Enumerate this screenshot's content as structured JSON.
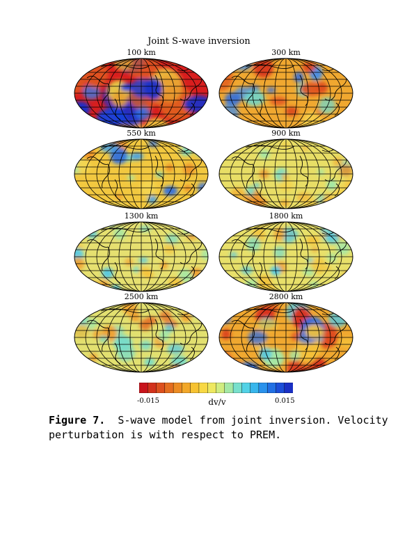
{
  "figure": {
    "title": "Joint S-wave inversion",
    "maps": [
      {
        "label": "100 km"
      },
      {
        "label": "300 km"
      },
      {
        "label": "550 km"
      },
      {
        "label": "900 km"
      },
      {
        "label": "1300 km"
      },
      {
        "label": "1800 km"
      },
      {
        "label": "2500 km"
      },
      {
        "label": "2800 km"
      }
    ],
    "colorbar": {
      "min_label": "-0.015",
      "max_label": "0.015",
      "label": "dv/v",
      "colors": [
        "#c8141c",
        "#d2321c",
        "#dc501e",
        "#e46e20",
        "#ec8c24",
        "#f2a82a",
        "#f6c232",
        "#f8d844",
        "#eee860",
        "#d0ec80",
        "#a4e8a6",
        "#78e0cc",
        "#52d2e6",
        "#38b6ec",
        "#2a92ec",
        "#2270e4",
        "#1c4ed8",
        "#1a30c4"
      ]
    },
    "caption_label": "Figure 7.",
    "caption_text": "S-wave model from joint inversion. Velocity perturbation is with respect to PREM."
  }
}
